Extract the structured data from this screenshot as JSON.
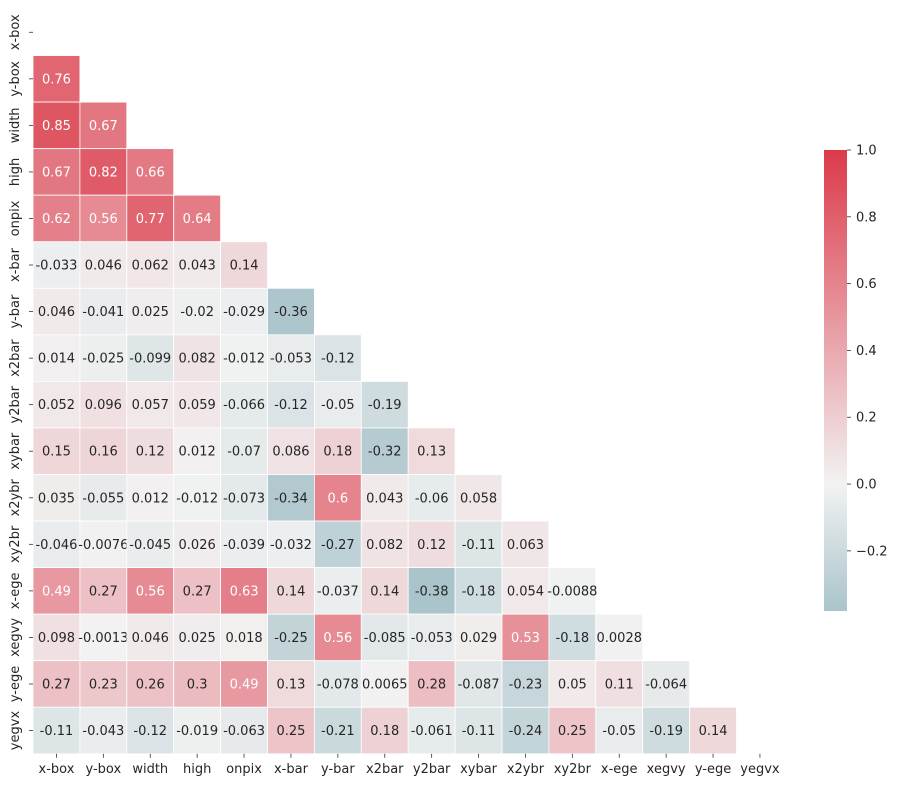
{
  "chart_data": {
    "type": "heatmap",
    "labels": [
      "x-box",
      "y-box",
      "width",
      "high",
      "onpix",
      "x-bar",
      "y-bar",
      "x2bar",
      "y2bar",
      "xybar",
      "x2ybr",
      "xy2br",
      "x-ege",
      "xegvy",
      "y-ege",
      "yegvx"
    ],
    "values": [
      [],
      [
        "0.76"
      ],
      [
        "0.85",
        "0.67"
      ],
      [
        "0.67",
        "0.82",
        "0.66"
      ],
      [
        "0.62",
        "0.56",
        "0.77",
        "0.64"
      ],
      [
        "-0.033",
        "0.046",
        "0.062",
        "0.043",
        "0.14"
      ],
      [
        "0.046",
        "-0.041",
        "0.025",
        "-0.02",
        "-0.029",
        "-0.36"
      ],
      [
        "0.014",
        "-0.025",
        "-0.099",
        "0.082",
        "-0.012",
        "-0.053",
        "-0.12"
      ],
      [
        "0.052",
        "0.096",
        "0.057",
        "0.059",
        "-0.066",
        "-0.12",
        "-0.05",
        "-0.19"
      ],
      [
        "0.15",
        "0.16",
        "0.12",
        "0.012",
        "-0.07",
        "0.086",
        "0.18",
        "-0.32",
        "0.13"
      ],
      [
        "0.035",
        "-0.055",
        "0.012",
        "-0.012",
        "-0.073",
        "-0.34",
        "0.6",
        "0.043",
        "-0.06",
        "0.058"
      ],
      [
        "-0.046",
        "-0.0076",
        "-0.045",
        "0.026",
        "-0.039",
        "-0.032",
        "-0.27",
        "0.082",
        "0.12",
        "-0.11",
        "0.063"
      ],
      [
        "0.49",
        "0.27",
        "0.56",
        "0.27",
        "0.63",
        "0.14",
        "-0.037",
        "0.14",
        "-0.38",
        "-0.18",
        "0.054",
        "-0.0088"
      ],
      [
        "0.098",
        "-0.0013",
        "0.046",
        "0.025",
        "0.018",
        "-0.25",
        "0.56",
        "-0.085",
        "-0.053",
        "0.029",
        "0.53",
        "-0.18",
        "0.0028"
      ],
      [
        "0.27",
        "0.23",
        "0.26",
        "0.3",
        "0.49",
        "0.13",
        "-0.078",
        "0.0065",
        "0.28",
        "-0.087",
        "-0.23",
        "0.05",
        "0.11",
        "-0.064"
      ],
      [
        "-0.11",
        "-0.043",
        "-0.12",
        "-0.019",
        "-0.063",
        "0.25",
        "-0.21",
        "0.18",
        "-0.061",
        "-0.11",
        "-0.24",
        "0.25",
        "-0.05",
        "-0.19",
        "0.14"
      ]
    ],
    "mask": "upper-triangle",
    "colorbar": {
      "min": -0.38,
      "max": 1.0,
      "ticks": [
        1.0,
        0.8,
        0.6,
        0.4,
        0.2,
        0.0,
        -0.2
      ],
      "tick_labels": [
        "1.0",
        "0.8",
        "0.6",
        "0.4",
        "0.2",
        "0.0",
        "−0.2"
      ],
      "low_color": "#a9c4cb",
      "mid_color": "#f2f2f2",
      "high_color": "#dc3a4a"
    },
    "grid": false
  }
}
